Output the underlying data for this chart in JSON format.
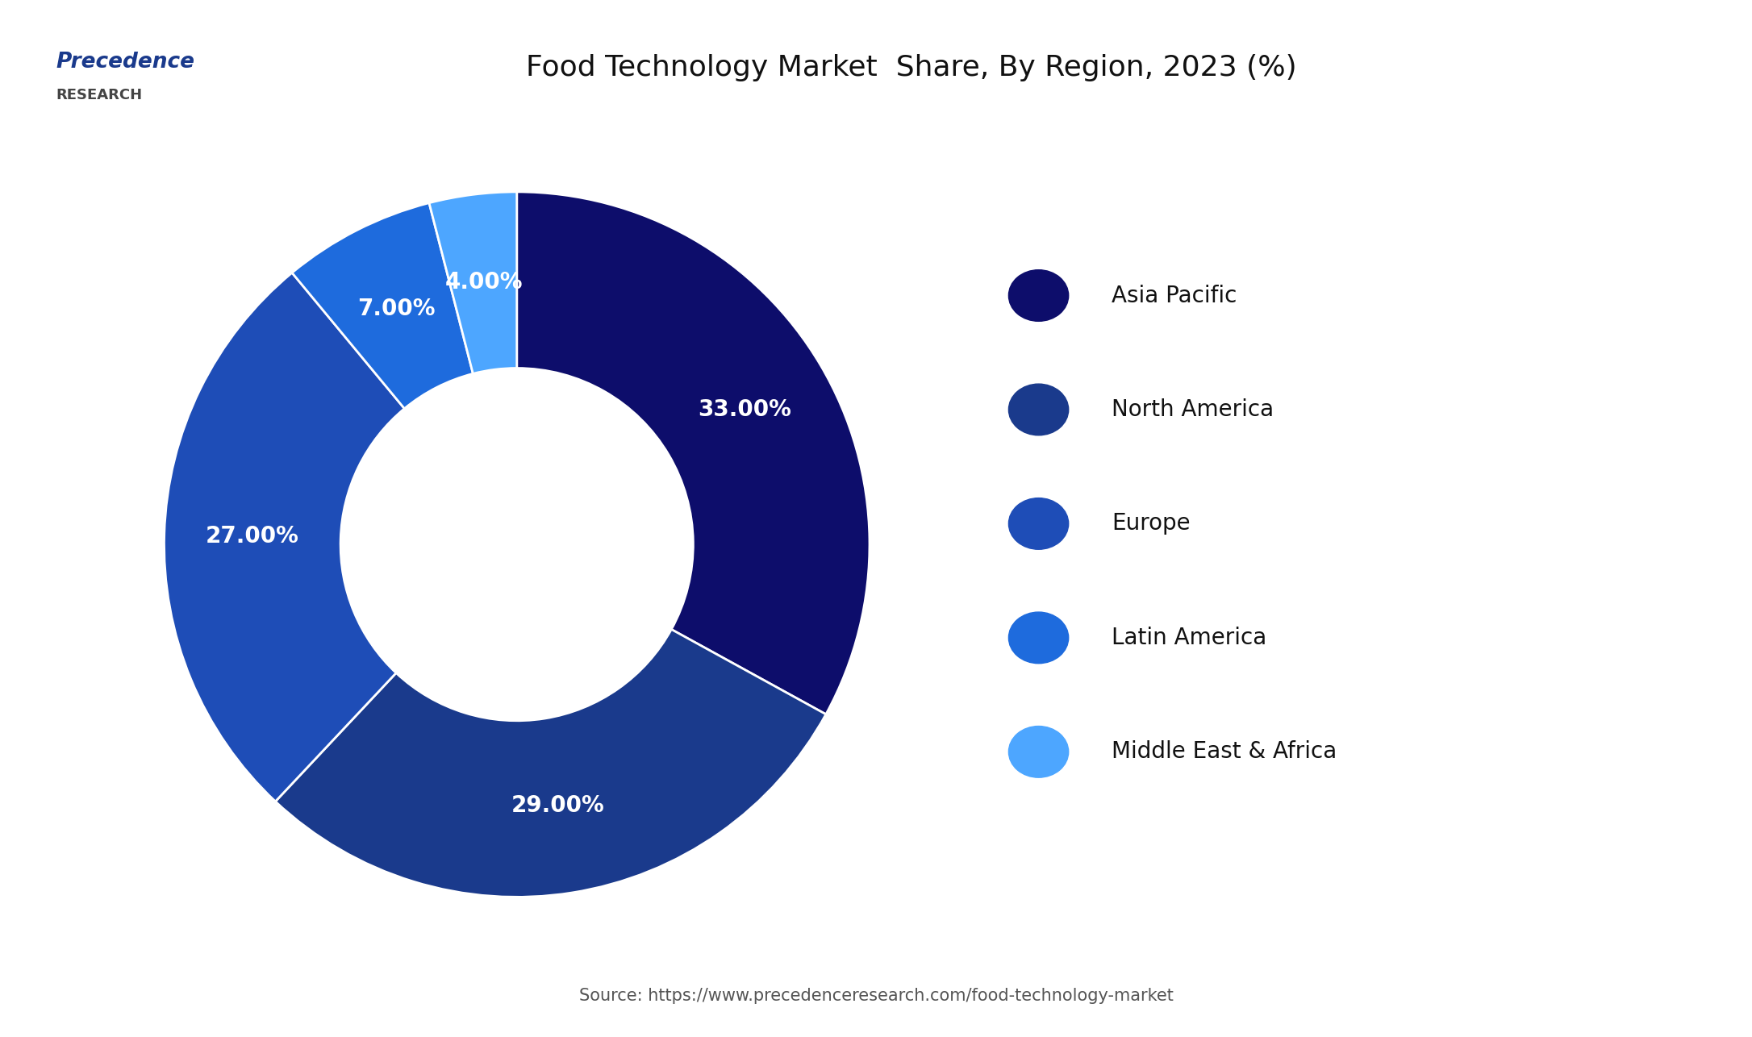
{
  "title": "Food Technology Market  Share, By Region, 2023 (%)",
  "title_fontsize": 26,
  "background_color": "#ffffff",
  "segments": [
    {
      "label": "Asia Pacific",
      "value": 33,
      "color": "#0d0d6b",
      "text_color": "#ffffff"
    },
    {
      "label": "North America",
      "value": 29,
      "color": "#1a3a8c",
      "text_color": "#ffffff"
    },
    {
      "label": "Europe",
      "value": 27,
      "color": "#1e4db7",
      "text_color": "#ffffff"
    },
    {
      "label": "Latin America",
      "value": 7,
      "color": "#1e6bdd",
      "text_color": "#ffffff"
    },
    {
      "label": "Middle East & Africa",
      "value": 4,
      "color": "#4da6ff",
      "text_color": "#ffffff"
    }
  ],
  "source_text": "Source: https://www.precedenceresearch.com/food-technology-market",
  "source_fontsize": 15,
  "legend_fontsize": 20,
  "pct_fontsize": 20,
  "header_line_color": "#1a3a8c",
  "logo_line1": "Precedence",
  "logo_line2": "RESEARCH"
}
